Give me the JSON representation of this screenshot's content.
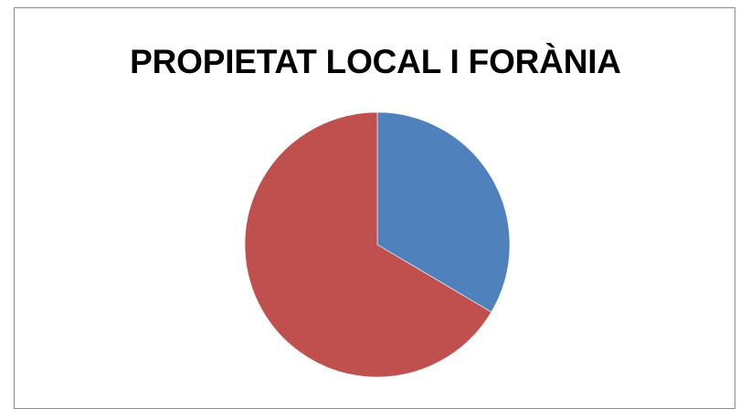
{
  "chart_data": {
    "type": "pie",
    "title": "PROPIETAT LOCAL I FORÀNIA",
    "slices": [
      {
        "name": "",
        "value": 33.5,
        "color": "#4f81bd"
      },
      {
        "name": "",
        "value": 66.5,
        "color": "#c0504d"
      }
    ],
    "start_angle": "12 o'clock",
    "direction": "clockwise",
    "legend": "none",
    "data_labels": "none"
  }
}
